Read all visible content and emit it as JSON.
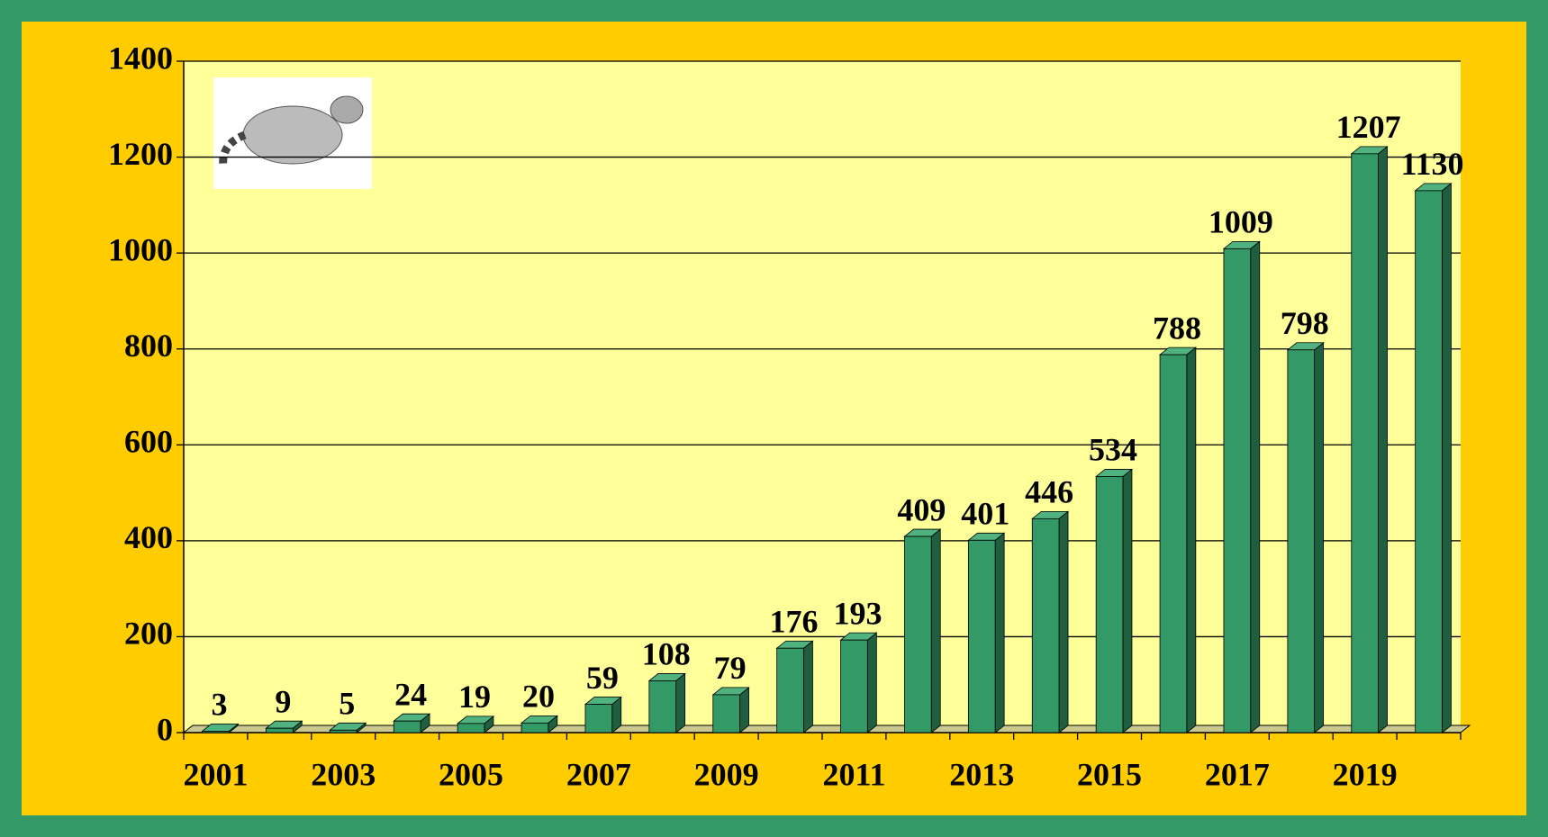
{
  "chart_data": {
    "type": "bar",
    "categories": [
      "2001",
      null,
      "2003",
      null,
      "2005",
      null,
      "2007",
      null,
      "2009",
      null,
      "2011",
      null,
      "2013",
      null,
      "2015",
      null,
      "2017",
      null,
      "2019",
      null
    ],
    "values": [
      3,
      9,
      5,
      24,
      19,
      20,
      59,
      108,
      79,
      176,
      193,
      409,
      401,
      446,
      534,
      788,
      1009,
      798,
      1207,
      1130
    ],
    "color": "#339966",
    "ylim": [
      0,
      1400
    ],
    "yticks": [
      0,
      200,
      400,
      600,
      800,
      1000,
      1200,
      1400
    ],
    "grid": true,
    "data_labels": true
  }
}
